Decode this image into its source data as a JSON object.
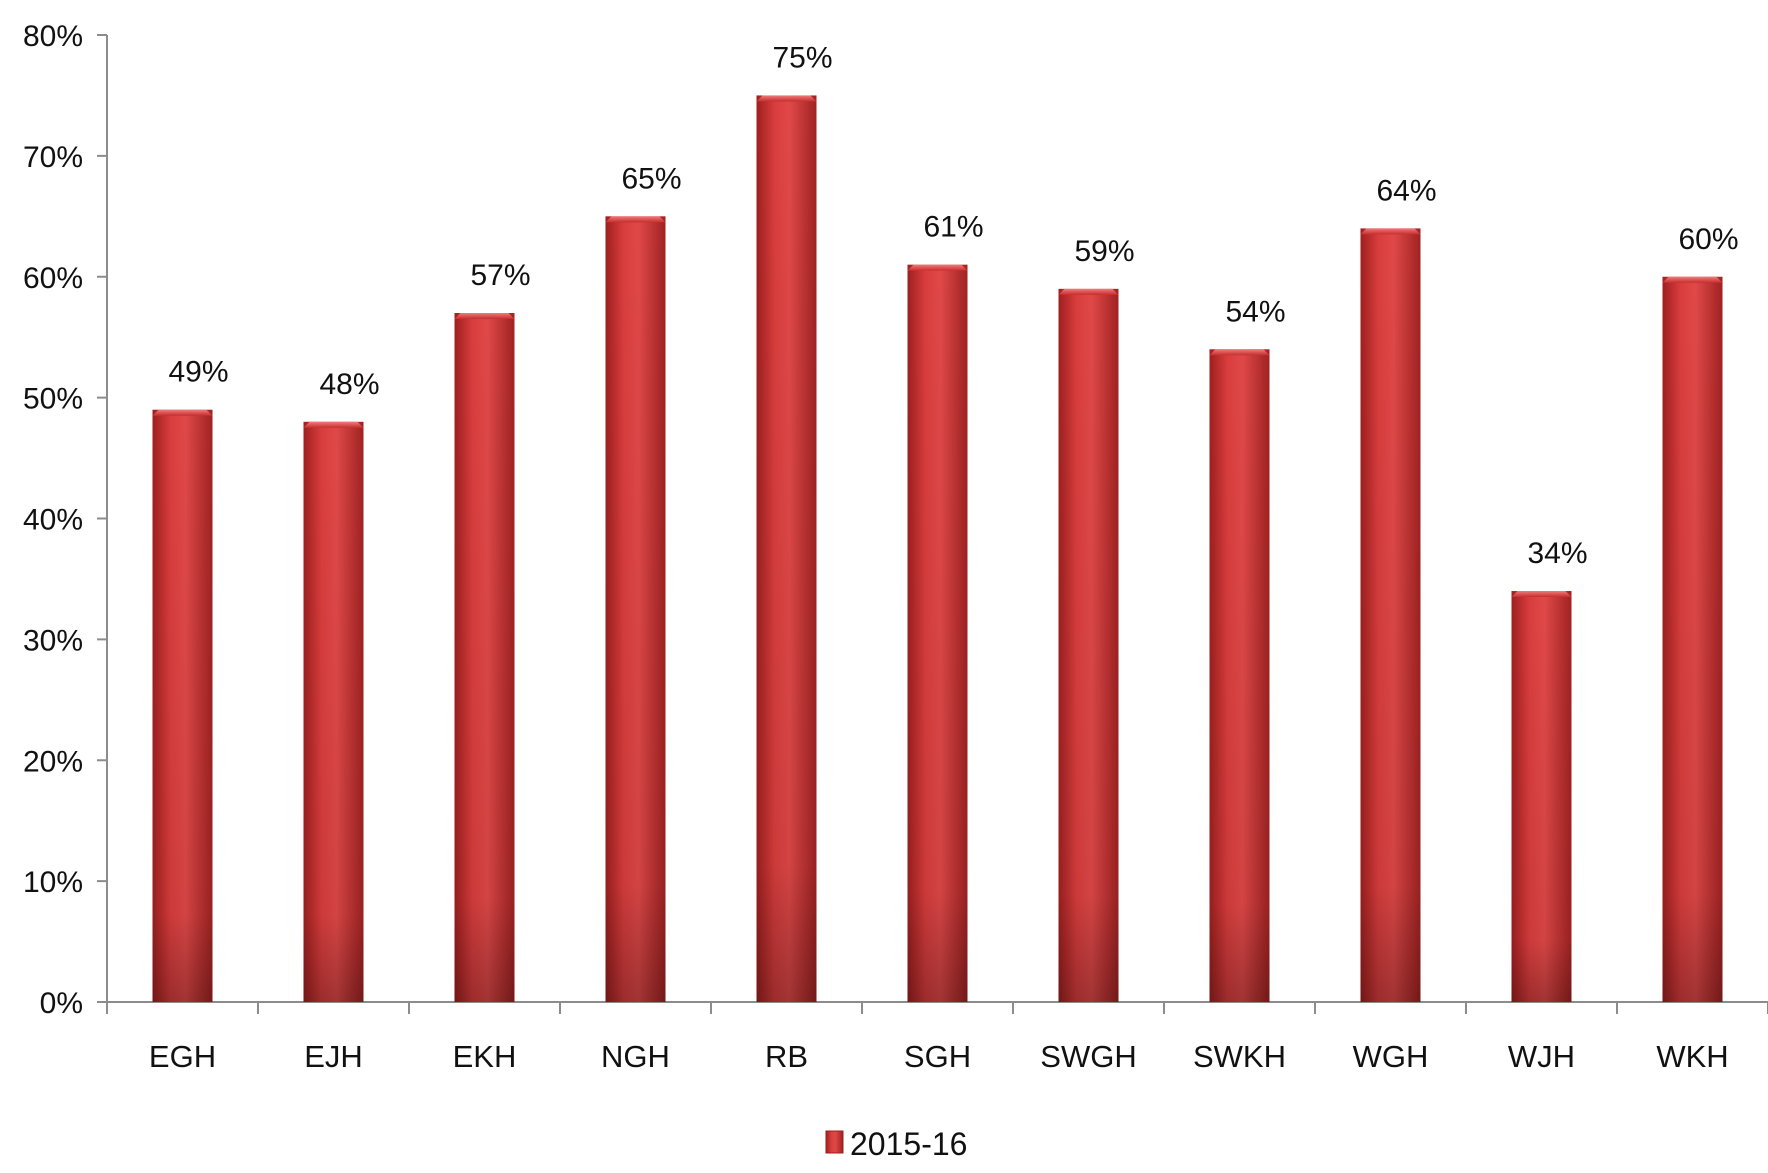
{
  "chart_data": {
    "type": "bar",
    "title": "",
    "xlabel": "",
    "ylabel": "",
    "categories": [
      "EGH",
      "EJH",
      "EKH",
      "NGH",
      "RB",
      "SGH",
      "SWGH",
      "SWKH",
      "WGH",
      "WJH",
      "WKH"
    ],
    "series": [
      {
        "name": "2015-16",
        "values": [
          49,
          48,
          57,
          65,
          75,
          61,
          59,
          54,
          64,
          34,
          60
        ],
        "labels": [
          "49%",
          "48%",
          "57%",
          "65%",
          "75%",
          "61%",
          "59%",
          "54%",
          "64%",
          "34%",
          "60%"
        ],
        "color": "#d63a3a"
      }
    ],
    "ylim": [
      0,
      80
    ],
    "yticks": [
      0,
      10,
      20,
      30,
      40,
      50,
      60,
      70,
      80
    ],
    "ytick_labels": [
      "0%",
      "10%",
      "20%",
      "30%",
      "40%",
      "50%",
      "60%",
      "70%",
      "80%"
    ],
    "grid": false,
    "legend": "bottom"
  }
}
